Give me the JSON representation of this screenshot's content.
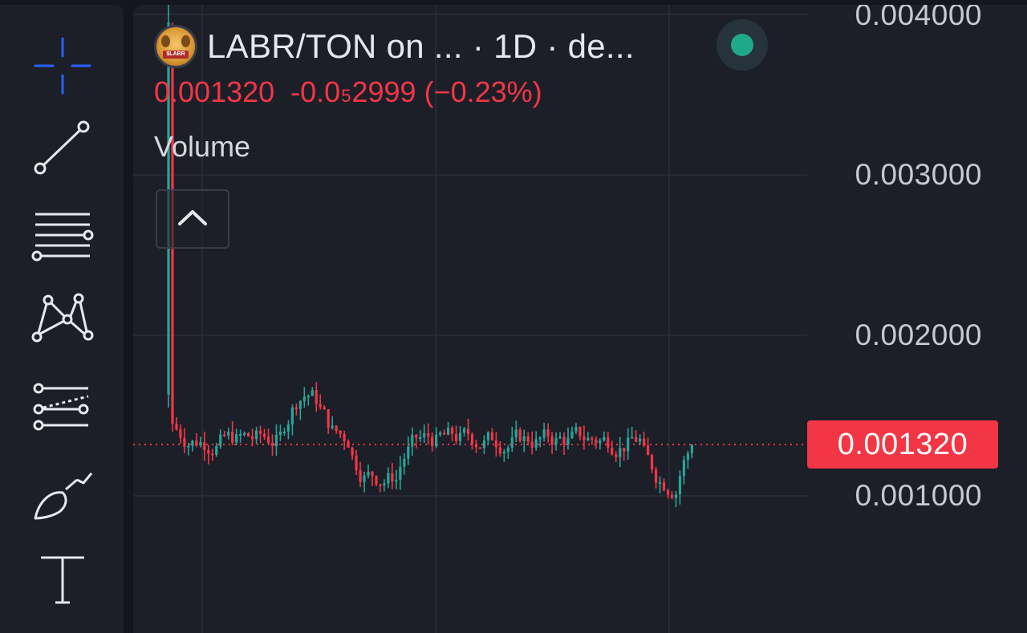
{
  "toolbar": {
    "tools": [
      {
        "name": "crosshair",
        "icon": "crosshair-icon",
        "active": true
      },
      {
        "name": "trend-line",
        "icon": "trend-line-icon"
      },
      {
        "name": "horizontal-lines",
        "icon": "fib-lines-icon"
      },
      {
        "name": "patterns",
        "icon": "pattern-icon"
      },
      {
        "name": "prediction",
        "icon": "forecast-icon"
      },
      {
        "name": "brush",
        "icon": "brush-icon"
      },
      {
        "name": "text",
        "icon": "text-icon"
      }
    ],
    "accent_color": "#2962ff"
  },
  "legend": {
    "logo_text": "$LABR",
    "title": "LABR/TON on ... · 1D · de...",
    "price": "0.001320",
    "change_prefix": "-0.0",
    "change_sub": "5",
    "change_rest": "2999",
    "change_pct": "(−0.23%)",
    "volume_label": "Volume",
    "status": "live",
    "status_color": "#1fa88a"
  },
  "price_axis": {
    "labels": [
      "0.004000",
      "0.003000",
      "0.002000",
      "0.001000"
    ],
    "last_price_label": "0.001320"
  },
  "colors": {
    "up": "#26a69a",
    "down": "#f23645",
    "background": "#1c1f28",
    "grid": "#2a2e39"
  },
  "chart_data": {
    "type": "candlestick",
    "title": "LABR/TON on ... · 1D · de...",
    "interval": "1D",
    "ylim": [
      0.0008,
      0.0041
    ],
    "y_ticks": [
      0.004,
      0.003,
      0.002,
      0.001
    ],
    "last_price": 0.00132,
    "grid": true,
    "series": [
      {
        "name": "LABR/TON",
        "seed": 7,
        "count": 132
      }
    ]
  }
}
